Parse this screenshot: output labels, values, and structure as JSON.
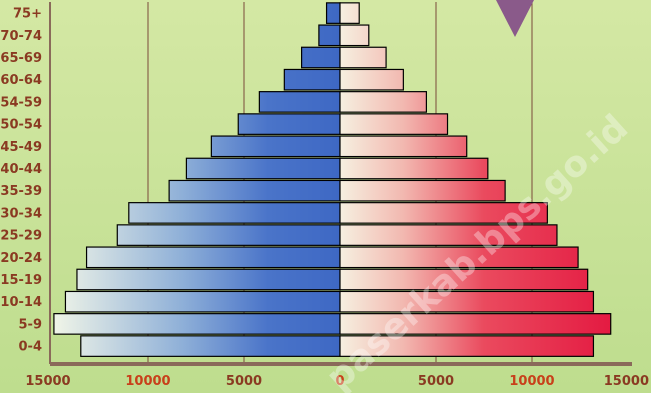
{
  "chart_data": {
    "type": "bar",
    "orientation": "horizontal",
    "subtype": "population-pyramid",
    "categories": [
      "0-4",
      "5-9",
      "10-14",
      "15-19",
      "20-24",
      "25-29",
      "30-34",
      "35-39",
      "40-44",
      "45-49",
      "50-54",
      "54-59",
      "60-64",
      "65-69",
      "70-74",
      "75+"
    ],
    "series": [
      {
        "values": [
          13500,
          14900,
          14300,
          13700,
          13200,
          11600,
          11000,
          8900,
          8000,
          6700,
          5300,
          4200,
          2900,
          2000,
          1100,
          700
        ],
        "color": "#4a74c9",
        "side": "left"
      },
      {
        "values": [
          13200,
          14100,
          13200,
          12900,
          12400,
          11300,
          10800,
          8600,
          7700,
          6600,
          5600,
          4500,
          3300,
          2400,
          1500,
          1000
        ],
        "color": "#e8234a",
        "side": "right"
      }
    ],
    "x_ticks": [
      {
        "label": "15000",
        "value": -15000,
        "color": "#8a3a22"
      },
      {
        "label": "10000",
        "value": -10000,
        "color": "#c8401a"
      },
      {
        "label": "5000",
        "value": -5000,
        "color": "#8a3a22"
      },
      {
        "label": "0",
        "value": 0,
        "color": "#c8401a"
      },
      {
        "label": "5000",
        "value": 5000,
        "color": "#8a3a22"
      },
      {
        "label": "10000",
        "value": 10000,
        "color": "#c8401a"
      },
      {
        "label": "15000",
        "value": 15000,
        "color": "#8a3a22"
      }
    ],
    "xlim": [
      -15000,
      15000
    ],
    "grid": true,
    "legend": "none"
  },
  "watermark": "paserkab.bps.go.id",
  "colors": {
    "background_top": "#cfe39a",
    "background_bottom": "#b9d98a",
    "axis": "#8a6a5a",
    "marker": "#8a5a8a"
  },
  "decorations": {
    "marker_shape": "down-triangle"
  }
}
